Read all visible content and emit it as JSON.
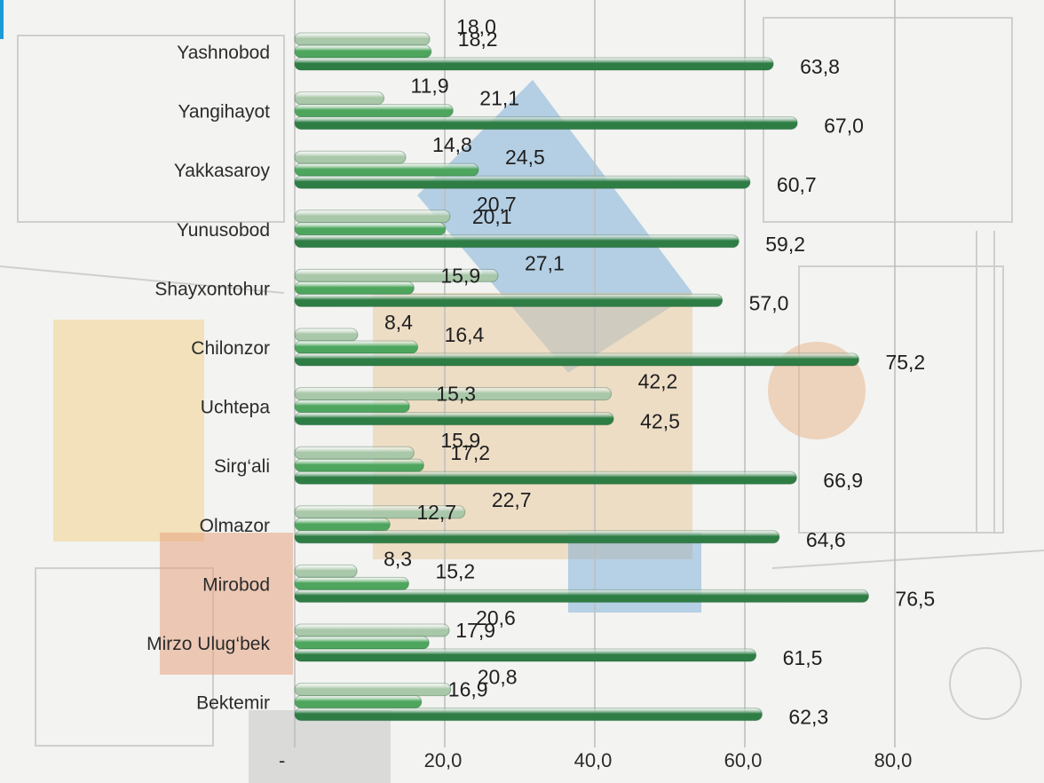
{
  "chart_data": {
    "type": "bar",
    "orientation": "horizontal",
    "categories": [
      "Yashnobod",
      "Yangihayot",
      "Yakkasaroy",
      "Yunusobod",
      "Shayxontohur",
      "Chilonzor",
      "Uchtepa",
      "Sirg‘ali",
      "Olmazor",
      "Mirobod",
      "Mirzo Ulug‘bek",
      "Bektemir"
    ],
    "series": [
      {
        "color": "#a9c7a9",
        "values": [
          18.0,
          11.9,
          14.8,
          20.7,
          27.1,
          8.4,
          42.2,
          15.9,
          22.7,
          8.3,
          20.6,
          20.8
        ],
        "labels": [
          "18,0",
          "11,9",
          "14,8",
          "20,7",
          "27,1",
          "8,4",
          "42,2",
          "15,9",
          "22,7",
          "8,3",
          "20,6",
          "20,8"
        ]
      },
      {
        "color": "#4ea65e",
        "values": [
          18.2,
          21.1,
          24.5,
          20.1,
          15.9,
          16.4,
          15.3,
          17.2,
          12.7,
          15.2,
          17.9,
          16.9
        ],
        "labels": [
          "18,2",
          "21,1",
          "24,5",
          "20,1",
          "15,9",
          "16,4",
          "15,3",
          "17,2",
          "12,7",
          "15,2",
          "17,9",
          "16,9"
        ]
      },
      {
        "color": "#2e7d45",
        "values": [
          63.8,
          67.0,
          60.7,
          59.2,
          57.0,
          75.2,
          42.5,
          66.9,
          64.6,
          76.5,
          61.5,
          62.3
        ],
        "labels": [
          "63,8",
          "67,0",
          "60,7",
          "59,2",
          "57,0",
          "75,2",
          "42,5",
          "66,9",
          "64,6",
          "76,5",
          "61,5",
          "62,3"
        ]
      }
    ],
    "xlim": [
      0,
      80
    ],
    "ticks": [
      0,
      20,
      40,
      60,
      80
    ],
    "tick_labels": [
      "-",
      "20,0",
      "40,0",
      "60,0",
      "80,0"
    ],
    "grid": true,
    "legend": "none"
  }
}
